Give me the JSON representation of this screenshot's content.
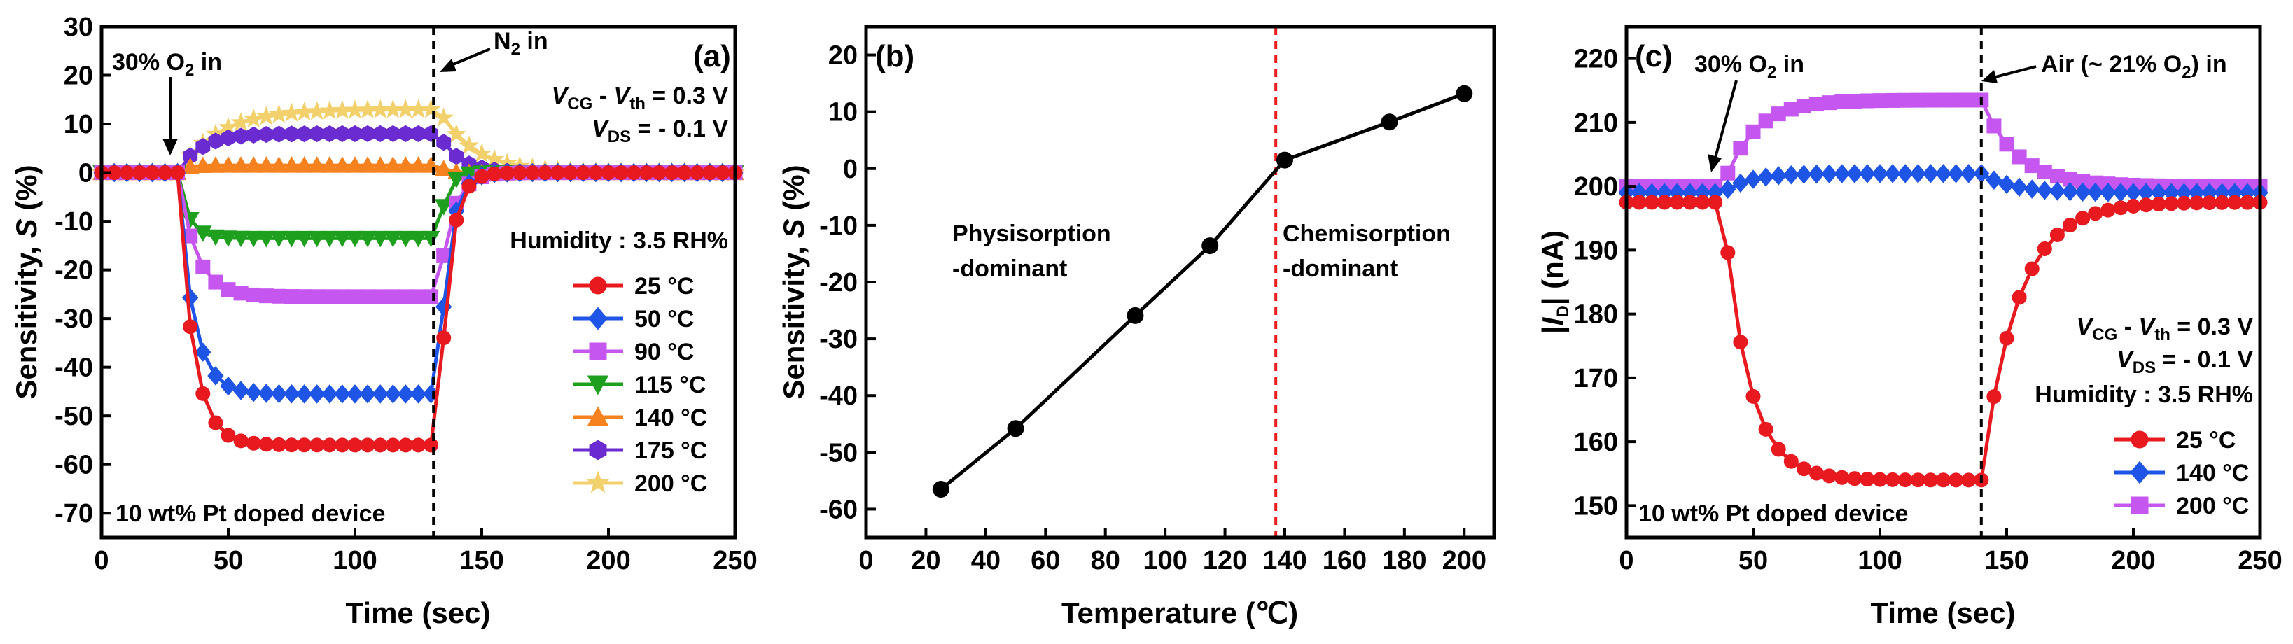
{
  "chart_data": [
    {
      "panel": "(a)",
      "type": "line",
      "xlabel": "Time (sec)",
      "ylabel": "Sensitivity, S (%)",
      "xlim": [
        0,
        250
      ],
      "ylim": [
        -75,
        30
      ],
      "x_ticks": [
        0,
        50,
        100,
        150,
        200,
        250
      ],
      "y_ticks": [
        30,
        20,
        10,
        0,
        -10,
        -20,
        -30,
        -40,
        -50,
        -60,
        -70
      ],
      "vline_x": 131,
      "annotations": {
        "gas_in": "30% O₂ in",
        "gas_out": "N₂ in",
        "vcg": "VCG - Vth = 0.3 V",
        "vds": "VDS = - 0.1 V",
        "humidity": "Humidity : 3.5 RH%",
        "device": "10 wt% Pt doped device"
      },
      "series": [
        {
          "name": "25 °C",
          "color": "#e8191f",
          "marker": "circle",
          "plateau": -56
        },
        {
          "name": "50 °C",
          "color": "#1f55e6",
          "marker": "diamond",
          "plateau": -45.5
        },
        {
          "name": "90 °C",
          "color": "#c656f0",
          "marker": "square",
          "plateau": -25.5
        },
        {
          "name": "115 °C",
          "color": "#1ea01e",
          "marker": "triangle-down",
          "plateau": -13.5
        },
        {
          "name": "140 °C",
          "color": "#f5821f",
          "marker": "triangle-up",
          "plateau": 1.5
        },
        {
          "name": "175 °C",
          "color": "#6a2bd1",
          "marker": "hexagon",
          "plateau": 8
        },
        {
          "name": "200 °C",
          "color": "#f2d06b",
          "marker": "star",
          "plateau": 13
        }
      ]
    },
    {
      "panel": "(b)",
      "type": "line",
      "xlabel": "Temperature (℃)",
      "ylabel": "Sensitivity, S (%)",
      "xlim": [
        0,
        210
      ],
      "ylim": [
        -65,
        25
      ],
      "x_ticks": [
        0,
        20,
        40,
        60,
        80,
        100,
        120,
        140,
        160,
        180,
        200
      ],
      "y_ticks": [
        20,
        10,
        0,
        -10,
        -20,
        -30,
        -40,
        -50,
        -60
      ],
      "vline_x": 137,
      "x": [
        25,
        50,
        90,
        115,
        140,
        175,
        200
      ],
      "values": [
        -56.5,
        -45.8,
        -25.9,
        -13.6,
        1.5,
        8.2,
        13.2
      ],
      "annotations": {
        "left_region_1": "Physisorption",
        "left_region_2": "-dominant",
        "right_region_1": "Chemisorption",
        "right_region_2": "-dominant"
      }
    },
    {
      "panel": "(c)",
      "type": "line",
      "xlabel": "Time (sec)",
      "ylabel": "|ID| (nA)",
      "xlim": [
        0,
        250
      ],
      "ylim": [
        145,
        225
      ],
      "x_ticks": [
        0,
        50,
        100,
        150,
        200,
        250
      ],
      "y_ticks": [
        220,
        210,
        200,
        190,
        180,
        170,
        160,
        150
      ],
      "vline_x": 140,
      "annotations": {
        "gas_in": "30% O₂ in",
        "gas_out": "Air (~ 21% O₂) in",
        "vcg": "VCG - Vth = 0.3 V",
        "vds": "VDS = - 0.1 V",
        "humidity": "Humidity : 3.5 RH%",
        "device": "10 wt% Pt doped device"
      },
      "series": [
        {
          "name": "25 °C",
          "color": "#e8191f",
          "marker": "circle",
          "baseline": 197.5,
          "plateau": 154
        },
        {
          "name": "140 °C",
          "color": "#1f55e6",
          "marker": "diamond",
          "baseline": 199,
          "plateau": 202
        },
        {
          "name": "200 °C",
          "color": "#c656f0",
          "marker": "square",
          "baseline": 200,
          "plateau": 213.5
        }
      ]
    }
  ]
}
